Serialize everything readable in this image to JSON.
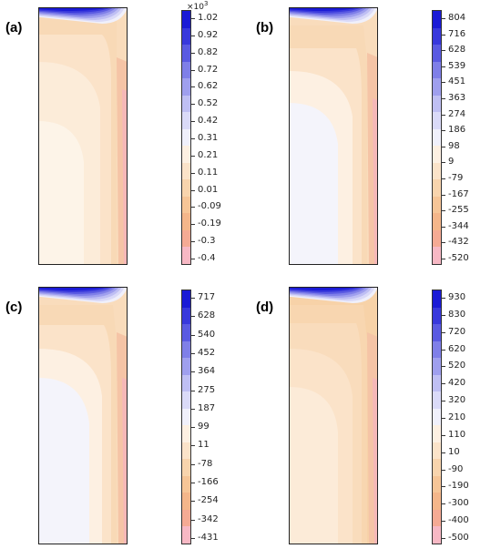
{
  "panels": [
    {
      "id": "a",
      "label": "(a)",
      "multiplier": "×10",
      "multiplier_exp": "3",
      "ticks": [
        "1.02",
        "0.92",
        "0.82",
        "0.72",
        "0.62",
        "0.52",
        "0.42",
        "0.31",
        "0.21",
        "0.11",
        "0.01",
        "-0.09",
        "-0.19",
        "-0.3",
        "-0.4"
      ],
      "bottom_ticks_offset": 1
    },
    {
      "id": "b",
      "label": "(b)",
      "ticks": [
        "804",
        "716",
        "628",
        "539",
        "451",
        "363",
        "274",
        "186",
        "98",
        "9",
        "-79",
        "-167",
        "-255",
        "-344",
        "-432",
        "-520"
      ]
    },
    {
      "id": "c",
      "label": "(c)",
      "ticks": [
        "717",
        "628",
        "540",
        "452",
        "364",
        "275",
        "187",
        "99",
        "11",
        "-78",
        "-166",
        "-254",
        "-342",
        "-431"
      ]
    },
    {
      "id": "d",
      "label": "(d)",
      "ticks": [
        "930",
        "830",
        "720",
        "620",
        "520",
        "420",
        "320",
        "210",
        "110",
        "10",
        "-90",
        "-190",
        "-300",
        "-400",
        "-500"
      ]
    }
  ],
  "colors": {
    "scale": [
      "#1a1ad6",
      "#3838dc",
      "#5a5ae2",
      "#7f7fe8",
      "#9f9fee",
      "#bfbff3",
      "#dadaf8",
      "#f0f0fb",
      "#fdf0e2",
      "#fbe3c9",
      "#f8d4ad",
      "#f6c597",
      "#f4b68a",
      "#f5aa94",
      "#f7b8c4"
    ]
  }
}
